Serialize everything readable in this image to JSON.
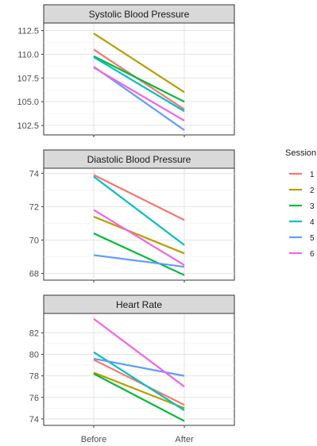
{
  "chart_data": {
    "type": "line",
    "categories": [
      "Before",
      "After"
    ],
    "legend": {
      "title": "Session",
      "placement": "right"
    },
    "series_colors": [
      "#F8766D",
      "#B79F00",
      "#00BA38",
      "#00BFC4",
      "#619CFF",
      "#F564E3"
    ],
    "panels": [
      {
        "title": "Systolic Blood Pressure",
        "ylim": [
          101.5,
          113.3
        ],
        "yticks": [
          102.5,
          105.0,
          107.5,
          110.0,
          112.5
        ],
        "ytick_labels": [
          "102.5",
          "105.0",
          "107.5",
          "110.0",
          "112.5"
        ],
        "series": [
          {
            "name": "1",
            "values": [
              110.5,
              104.2
            ]
          },
          {
            "name": "2",
            "values": [
              112.2,
              106.0
            ]
          },
          {
            "name": "3",
            "values": [
              109.8,
              105.0
            ]
          },
          {
            "name": "4",
            "values": [
              109.7,
              104.0
            ]
          },
          {
            "name": "5",
            "values": [
              108.7,
              102.0
            ]
          },
          {
            "name": "6",
            "values": [
              108.6,
              103.0
            ]
          }
        ]
      },
      {
        "title": "Diastolic Blood Pressure",
        "ylim": [
          67.6,
          74.3
        ],
        "yticks": [
          68,
          70,
          72,
          74
        ],
        "ytick_labels": [
          "68",
          "70",
          "72",
          "74"
        ],
        "series": [
          {
            "name": "1",
            "values": [
              73.9,
              71.2
            ]
          },
          {
            "name": "2",
            "values": [
              71.4,
              69.2
            ]
          },
          {
            "name": "3",
            "values": [
              70.4,
              67.9
            ]
          },
          {
            "name": "4",
            "values": [
              73.8,
              69.7
            ]
          },
          {
            "name": "5",
            "values": [
              69.1,
              68.4
            ]
          },
          {
            "name": "6",
            "values": [
              71.8,
              68.5
            ]
          }
        ]
      },
      {
        "title": "Heart Rate",
        "ylim": [
          73.4,
          83.8
        ],
        "yticks": [
          74,
          76,
          78,
          80,
          82
        ],
        "ytick_labels": [
          "74",
          "76",
          "78",
          "80",
          "82"
        ],
        "series": [
          {
            "name": "1",
            "values": [
              79.5,
              75.3
            ]
          },
          {
            "name": "2",
            "values": [
              78.3,
              75.0
            ]
          },
          {
            "name": "3",
            "values": [
              78.2,
              73.8
            ]
          },
          {
            "name": "4",
            "values": [
              80.2,
              74.8
            ]
          },
          {
            "name": "5",
            "values": [
              79.6,
              78.0
            ]
          },
          {
            "name": "6",
            "values": [
              83.3,
              77.0
            ]
          }
        ]
      }
    ]
  }
}
